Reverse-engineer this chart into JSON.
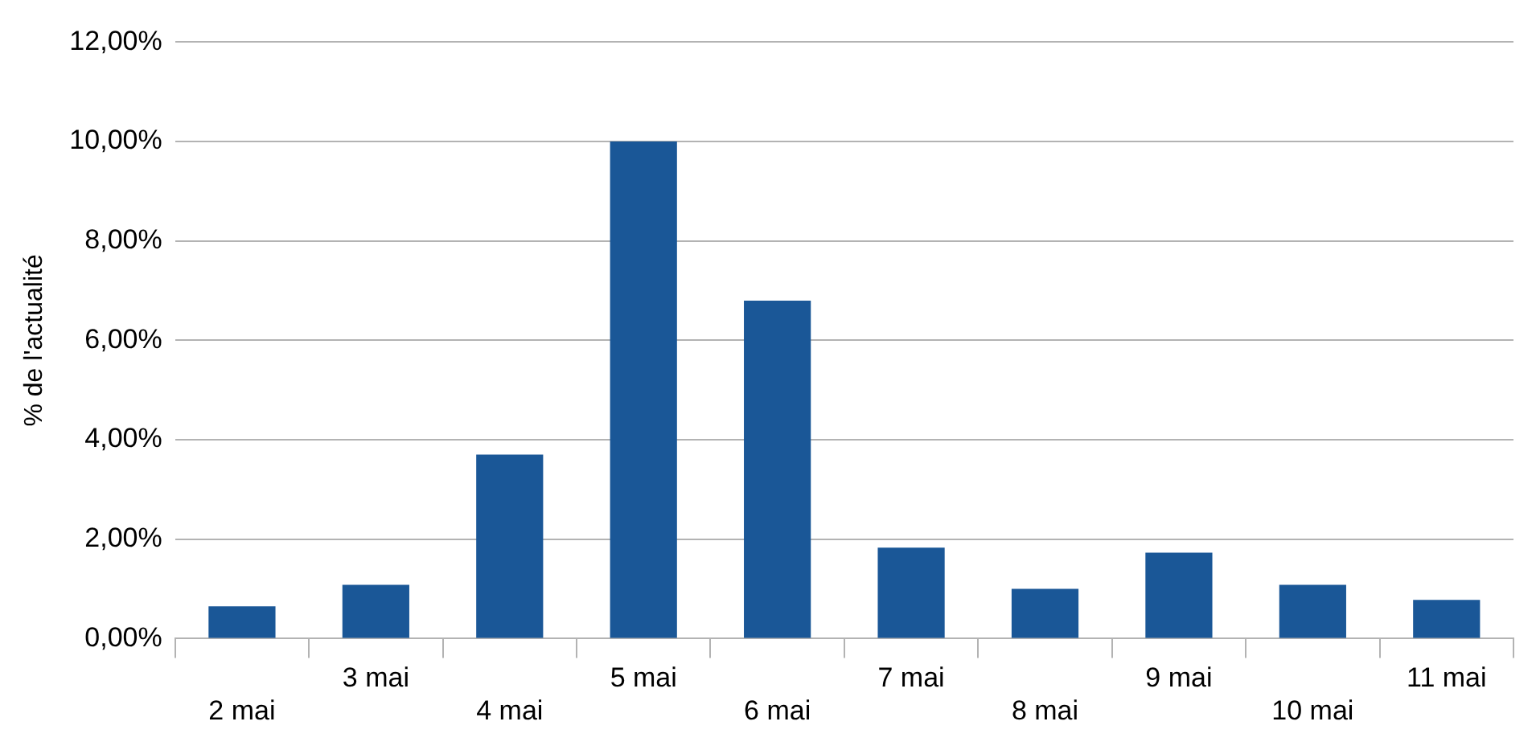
{
  "chart_data": {
    "type": "bar",
    "ylabel": "% de l'actualité",
    "categories": [
      "2 mai",
      "3 mai",
      "4 mai",
      "5 mai",
      "6 mai",
      "7 mai",
      "8 mai",
      "9 mai",
      "10 mai",
      "11 mai"
    ],
    "values": [
      0.65,
      1.08,
      3.7,
      10.0,
      6.8,
      1.83,
      1.0,
      1.73,
      1.08,
      0.78
    ],
    "color": "#1a5797",
    "ylim": [
      0,
      12
    ],
    "yticks": [
      {
        "value": 0,
        "label": "0,00%"
      },
      {
        "value": 2,
        "label": "2,00%"
      },
      {
        "value": 4,
        "label": "4,00%"
      },
      {
        "value": 6,
        "label": "6,00%"
      },
      {
        "value": 8,
        "label": "8,00%"
      },
      {
        "value": 10,
        "label": "10,00%"
      },
      {
        "value": 12,
        "label": "12,00%"
      }
    ],
    "grid": "y"
  }
}
